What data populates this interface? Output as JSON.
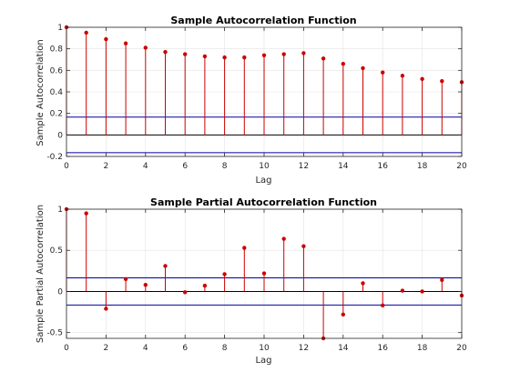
{
  "chart_data": [
    {
      "type": "stem",
      "title": "Sample Autocorrelation Function",
      "xlabel": "Lag",
      "ylabel": "Sample Autocorrelation",
      "xlim": [
        0,
        20
      ],
      "ylim": [
        -0.2,
        1
      ],
      "xticks": [
        0,
        2,
        4,
        6,
        8,
        10,
        12,
        14,
        16,
        18,
        20
      ],
      "yticks": [
        -0.2,
        0,
        0.2,
        0.4,
        0.6,
        0.8,
        1
      ],
      "ytick_labels": [
        "-0.2",
        "0",
        "0.2",
        "0.4",
        "0.6",
        "0.8",
        "1"
      ],
      "grid": true,
      "x": [
        0,
        1,
        2,
        3,
        4,
        5,
        6,
        7,
        8,
        9,
        10,
        11,
        12,
        13,
        14,
        15,
        16,
        17,
        18,
        19,
        20
      ],
      "values": [
        1.0,
        0.95,
        0.89,
        0.85,
        0.81,
        0.77,
        0.75,
        0.73,
        0.72,
        0.72,
        0.74,
        0.75,
        0.76,
        0.71,
        0.66,
        0.62,
        0.58,
        0.55,
        0.52,
        0.5,
        0.49
      ],
      "confidence_bounds": [
        0.165,
        -0.165
      ],
      "stem_color": "#cc0000",
      "bound_color": "#0000a0"
    },
    {
      "type": "stem",
      "title": "Sample Partial Autocorrelation Function",
      "xlabel": "Lag",
      "ylabel": "Sample Partial Autocorrelation",
      "xlim": [
        0,
        20
      ],
      "ylim": [
        -0.57,
        1
      ],
      "xticks": [
        0,
        2,
        4,
        6,
        8,
        10,
        12,
        14,
        16,
        18,
        20
      ],
      "yticks": [
        -0.5,
        0,
        0.5,
        1
      ],
      "ytick_labels": [
        "-0.5",
        "0",
        "0.5",
        "1"
      ],
      "grid": true,
      "x": [
        0,
        1,
        2,
        3,
        4,
        5,
        6,
        7,
        8,
        9,
        10,
        11,
        12,
        13,
        14,
        15,
        16,
        17,
        18,
        19,
        20
      ],
      "values": [
        1.0,
        0.95,
        -0.21,
        0.15,
        0.08,
        0.31,
        -0.01,
        0.07,
        0.21,
        0.53,
        0.22,
        0.64,
        0.55,
        -0.57,
        -0.28,
        0.1,
        -0.17,
        0.01,
        0.0,
        0.14,
        -0.05
      ],
      "confidence_bounds": [
        0.165,
        -0.165
      ],
      "stem_color": "#cc0000",
      "bound_color": "#0000a0"
    }
  ]
}
